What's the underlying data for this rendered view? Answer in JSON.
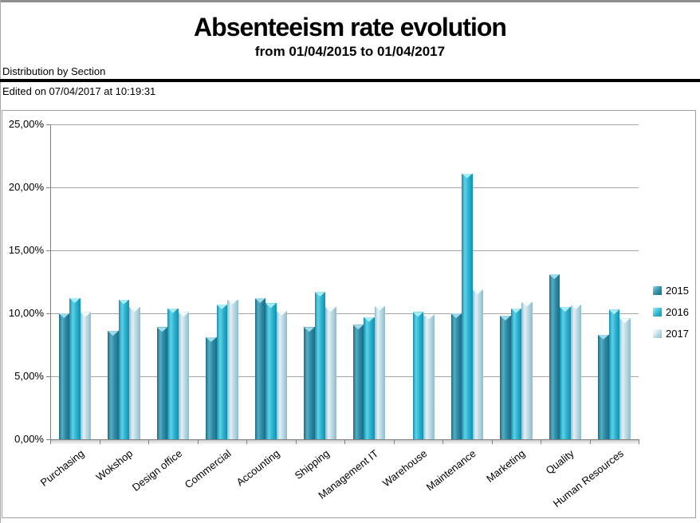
{
  "header": {
    "title": "Absenteeism rate evolution",
    "subtitle": "from 01/04/2015 to 01/04/2017",
    "section_label": "Distribution by Section",
    "edited_label": "Edited on 07/04/2017 at 10:19:31"
  },
  "chart_data": {
    "type": "bar",
    "title": "Absenteeism rate evolution",
    "subtitle": "from 01/04/2015 to 01/04/2017",
    "categories": [
      "Purchasing",
      "Wokshop",
      "Design office",
      "Commercial",
      "Accounting",
      "Shipping",
      "Management IT",
      "Warehouse",
      "Maintenance",
      "Marketing",
      "Quality",
      "Human Resources"
    ],
    "series": [
      {
        "name": "2015",
        "values": [
          10.0,
          8.6,
          8.9,
          8.1,
          11.2,
          8.9,
          9.1,
          null,
          10.0,
          9.8,
          13.1,
          8.3
        ],
        "color_main": "#2f8ba4",
        "color_light": "#54aec4",
        "color_edge": "#1a6d87",
        "color_cap": "#9fdbe8"
      },
      {
        "name": "2016",
        "values": [
          11.2,
          11.1,
          10.4,
          10.7,
          10.8,
          11.7,
          9.7,
          10.1,
          21.1,
          10.4,
          10.5,
          10.3
        ],
        "color_main": "#2cb3d0",
        "color_light": "#5fd2e6",
        "color_edge": "#158fae",
        "color_cap": "#a5ecf5"
      },
      {
        "name": "2017",
        "values": [
          10.1,
          10.5,
          10.1,
          11.1,
          10.2,
          10.5,
          10.6,
          9.9,
          11.9,
          10.9,
          10.7,
          9.6
        ],
        "color_main": "#b9d8e3",
        "color_light": "#e2f1f6",
        "color_edge": "#8fbccd",
        "color_cap": "#f2fafc"
      }
    ],
    "xlabel": "",
    "ylabel": "",
    "ylim": [
      0,
      25
    ],
    "ytick_step": 5,
    "ytick_labels": [
      "0,00%",
      "5,00%",
      "10,00%",
      "15,00%",
      "20,00%",
      "25,00%"
    ],
    "grid": true,
    "legend_position": "right",
    "colors": {
      "gridline": "#a6a6a6",
      "axis": "#808080",
      "frame_border": "#a0a0a0",
      "divider": "#000000"
    }
  }
}
